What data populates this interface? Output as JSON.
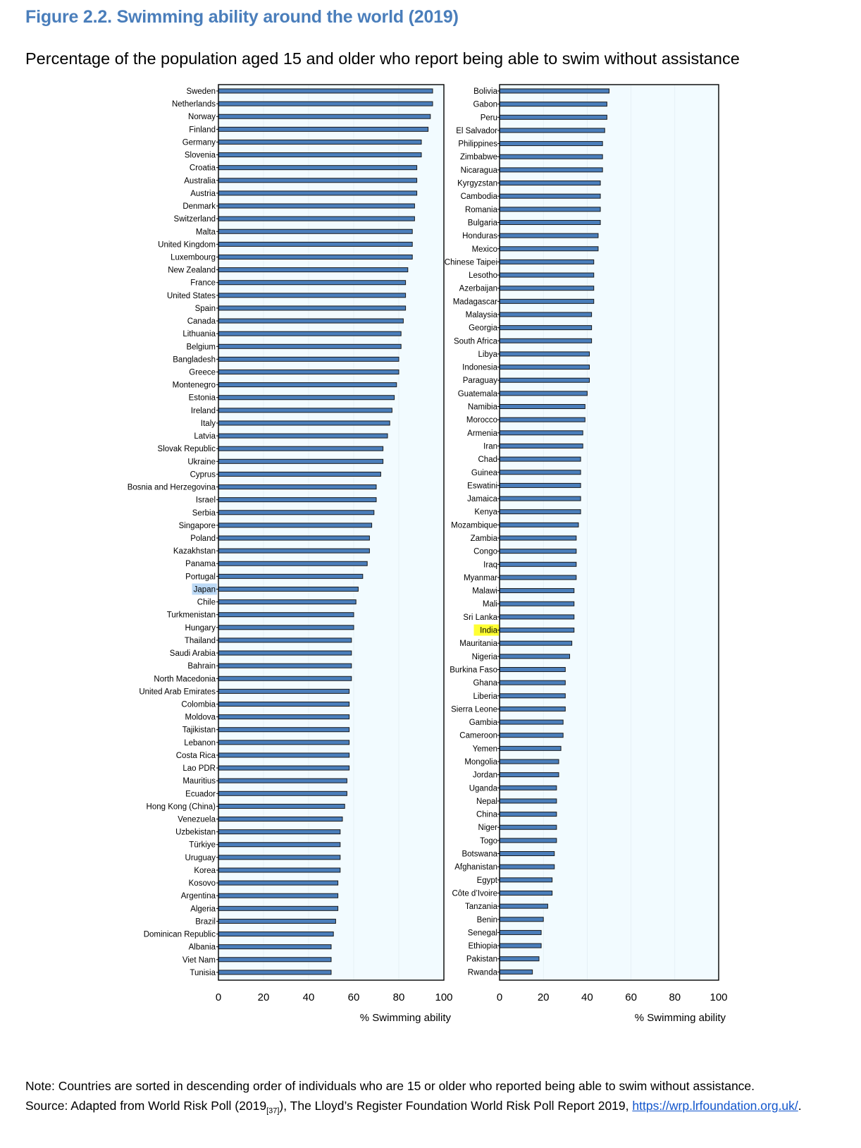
{
  "figure": {
    "title": "Figure 2.2. Swimming ability around the world (2019)",
    "subtitle": "Percentage of the population aged 15 and older who report being able to swim without assistance"
  },
  "notes": {
    "note": "Note: Countries are sorted in descending order of individuals who are 15 or older who reported being able to swim without assistance.",
    "source_prefix": "Source: Adapted from World Risk Poll (2019",
    "source_ref": "[37]",
    "source_middle": "), The Lloyd’s Register Foundation World Risk Poll Report 2019, ",
    "source_link": "https://wrp.lrfoundation.org.uk/",
    "source_suffix": "."
  },
  "colors": {
    "bar_fill": "#4a7ebb",
    "bar_stroke": "#1a1a1a",
    "plot_bg": "#f2fbff",
    "highlight_blue": "#bcd9f5",
    "highlight_yellow": "#ffff33"
  },
  "chart_data": [
    {
      "type": "bar",
      "orientation": "horizontal",
      "xlabel": "% Swimming ability",
      "xlim": [
        0,
        100
      ],
      "xticks": [
        0,
        20,
        40,
        60,
        80,
        100
      ],
      "categories": [
        "Sweden",
        "Netherlands",
        "Norway",
        "Finland",
        "Germany",
        "Slovenia",
        "Croatia",
        "Australia",
        "Austria",
        "Denmark",
        "Switzerland",
        "Malta",
        "United Kingdom",
        "Luxembourg",
        "New Zealand",
        "France",
        "United States",
        "Spain",
        "Canada",
        "Lithuania",
        "Belgium",
        "Bangladesh",
        "Greece",
        "Montenegro",
        "Estonia",
        "Ireland",
        "Italy",
        "Latvia",
        "Slovak Republic",
        "Ukraine",
        "Cyprus",
        "Bosnia and Herzegovina",
        "Israel",
        "Serbia",
        "Singapore",
        "Poland",
        "Kazakhstan",
        "Panama",
        "Portugal",
        "Japan",
        "Chile",
        "Turkmenistan",
        "Hungary",
        "Thailand",
        "Saudi Arabia",
        "Bahrain",
        "North Macedonia",
        "United Arab Emirates",
        "Colombia",
        "Moldova",
        "Tajikistan",
        "Lebanon",
        "Costa Rica",
        "Lao PDR",
        "Mauritius",
        "Ecuador",
        "Hong Kong (China)",
        "Venezuela",
        "Uzbekistan",
        "Türkiye",
        "Uruguay",
        "Korea",
        "Kosovo",
        "Argentina",
        "Algeria",
        "Brazil",
        "Dominican Republic",
        "Albania",
        "Viet Nam",
        "Tunisia"
      ],
      "values": [
        95,
        95,
        94,
        93,
        90,
        90,
        88,
        88,
        88,
        87,
        87,
        86,
        86,
        86,
        84,
        83,
        83,
        83,
        82,
        81,
        81,
        80,
        80,
        79,
        78,
        77,
        76,
        75,
        73,
        73,
        72,
        70,
        70,
        69,
        68,
        67,
        67,
        66,
        64,
        62,
        61,
        60,
        60,
        59,
        59,
        59,
        59,
        58,
        58,
        58,
        58,
        58,
        58,
        58,
        57,
        57,
        56,
        55,
        54,
        54,
        54,
        54,
        53,
        53,
        53,
        52,
        51,
        50,
        50,
        50
      ],
      "highlight": {
        "category": "Japan",
        "color": "#bcd9f5"
      }
    },
    {
      "type": "bar",
      "orientation": "horizontal",
      "xlabel": "% Swimming ability",
      "xlim": [
        0,
        100
      ],
      "xticks": [
        0,
        20,
        40,
        60,
        80,
        100
      ],
      "categories": [
        "Bolivia",
        "Gabon",
        "Peru",
        "El Salvador",
        "Philippines",
        "Zimbabwe",
        "Nicaragua",
        "Kyrgyzstan",
        "Cambodia",
        "Romania",
        "Bulgaria",
        "Honduras",
        "Mexico",
        "Chinese Taipei",
        "Lesotho",
        "Azerbaijan",
        "Madagascar",
        "Malaysia",
        "Georgia",
        "South Africa",
        "Libya",
        "Indonesia",
        "Paraguay",
        "Guatemala",
        "Namibia",
        "Morocco",
        "Armenia",
        "Iran",
        "Chad",
        "Guinea",
        "Eswatini",
        "Jamaica",
        "Kenya",
        "Mozambique",
        "Zambia",
        "Congo",
        "Iraq",
        "Myanmar",
        "Malawi",
        "Mali",
        "Sri Lanka",
        "India",
        "Mauritania",
        "Nigeria",
        "Burkina Faso",
        "Ghana",
        "Liberia",
        "Sierra Leone",
        "Gambia",
        "Cameroon",
        "Yemen",
        "Mongolia",
        "Jordan",
        "Uganda",
        "Nepal",
        "China",
        "Niger",
        "Togo",
        "Botswana",
        "Afghanistan",
        "Egypt",
        "Côte d’Ivoire",
        "Tanzania",
        "Benin",
        "Senegal",
        "Ethiopia",
        "Pakistan",
        "Rwanda"
      ],
      "values": [
        50,
        49,
        49,
        48,
        47,
        47,
        47,
        46,
        46,
        46,
        46,
        45,
        45,
        43,
        43,
        43,
        43,
        42,
        42,
        42,
        41,
        41,
        41,
        40,
        39,
        39,
        38,
        38,
        37,
        37,
        37,
        37,
        37,
        36,
        35,
        35,
        35,
        35,
        34,
        34,
        34,
        34,
        33,
        32,
        30,
        30,
        30,
        30,
        29,
        29,
        28,
        27,
        27,
        26,
        26,
        26,
        26,
        26,
        25,
        25,
        24,
        24,
        22,
        20,
        19,
        19,
        18,
        15
      ],
      "highlight": {
        "category": "India",
        "color": "#ffff33"
      }
    }
  ]
}
